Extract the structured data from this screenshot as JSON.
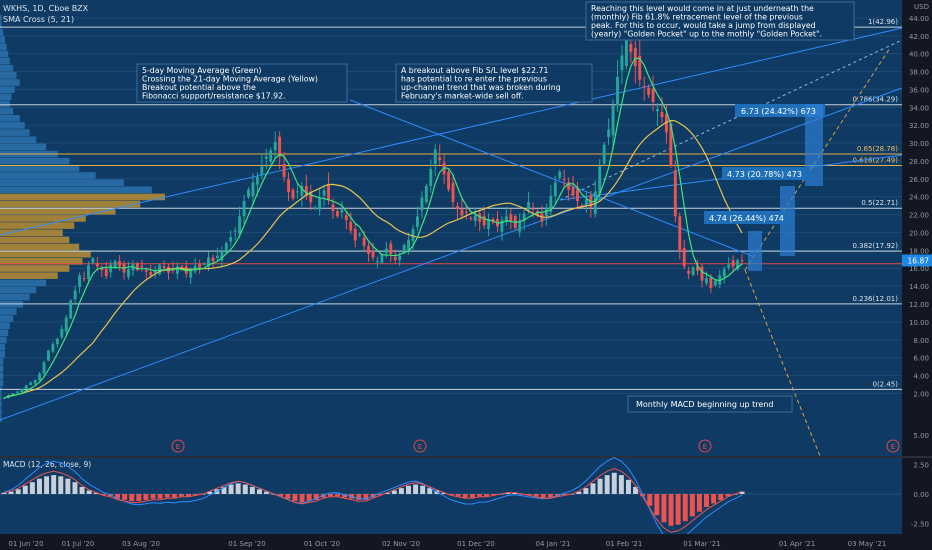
{
  "header": {
    "symbol": "WKHS, 1D, Cboe BZX",
    "indicator": "SMA Cross (5, 21)",
    "currency": "USD"
  },
  "chart_data": {
    "type": "candlestick",
    "ylim": [
      -5,
      46
    ],
    "price_ticks": [
      44,
      42,
      40,
      38,
      36,
      34,
      32,
      30,
      28,
      26,
      24,
      22,
      20,
      18,
      16,
      14,
      12,
      10,
      8,
      6,
      4,
      2
    ],
    "dates": [
      "01 Jun '20",
      "01 Jul '20",
      "03 Aug '20",
      "01 Sep '20",
      "01 Oct '20",
      "02 Nov '20",
      "01 Dec '20",
      "04 Jan '21",
      "01 Feb '21",
      "01 Mar '21",
      "01 Apr '21",
      "03 May '21"
    ],
    "last_price": "16.87",
    "fib_levels": [
      {
        "ratio": "1",
        "value": 42.96,
        "label": "1(42.96)"
      },
      {
        "ratio": "0.786",
        "value": 34.29,
        "label": "0.786(34.29)"
      },
      {
        "ratio": "0.65",
        "value": 28.78,
        "label": "0.65(28.78)"
      },
      {
        "ratio": "0.618",
        "value": 27.49,
        "label": "0.618(27.49)"
      },
      {
        "ratio": "0.5",
        "value": 22.71,
        "label": "0.5(22.71)"
      },
      {
        "ratio": "0.382",
        "value": 17.92,
        "label": "0.382(17.92)"
      },
      {
        "ratio": "0.236",
        "value": 12.01,
        "label": "0.236(12.01)"
      },
      {
        "ratio": "0",
        "value": 2.45,
        "label": "0(2.45)"
      }
    ],
    "support_level": 16.5,
    "closes": [
      1.5,
      1.8,
      2.0,
      2.2,
      2.5,
      2.9,
      3.2,
      3.5,
      4.2,
      5.5,
      6.8,
      7.5,
      8.1,
      9.2,
      10.5,
      12.4,
      13.5,
      15.2,
      14.8,
      16.3,
      17.1,
      16.2,
      15.8,
      15.1,
      16.4,
      16.8,
      16.2,
      15.5,
      15.9,
      16.4,
      15.8,
      16.1,
      15.6,
      15.2,
      15.8,
      16.4,
      16.0,
      15.5,
      15.7,
      16.2,
      15.9,
      15.4,
      15.8,
      16.3,
      16.0,
      16.5,
      17.2,
      16.8,
      17.4,
      17.9,
      18.8,
      19.5,
      20.2,
      21.8,
      23.5,
      24.8,
      25.6,
      26.2,
      27.4,
      28.5,
      29.2,
      30.1,
      28.5,
      26.2,
      24.5,
      23.8,
      24.6,
      25.2,
      24.1,
      23.4,
      22.8,
      23.9,
      24.7,
      23.6,
      22.4,
      21.8,
      22.6,
      21.4,
      20.2,
      19.1,
      19.8,
      18.5,
      17.6,
      17.2,
      16.8,
      17.5,
      18.2,
      17.6,
      16.9,
      17.4,
      18.6,
      19.2,
      20.4,
      21.8,
      23.9,
      25.2,
      27.1,
      29.3,
      28.1,
      26.5,
      24.8,
      23.4,
      22.6,
      21.9,
      22.3,
      21.5,
      21.9,
      21.2,
      20.8,
      21.5,
      21.1,
      20.7,
      21.4,
      21.8,
      21.2,
      20.5,
      21.3,
      22.1,
      23.4,
      22.6,
      21.9,
      21.2,
      22.8,
      24.1,
      25.6,
      26.8,
      25.9,
      24.8,
      24.2,
      23.5,
      22.9,
      23.7,
      22.8,
      24.6,
      27.4,
      29.8,
      31.5,
      34.2,
      37.4,
      39.8,
      41.5,
      40.2,
      38.6,
      37.1,
      36.2,
      35.4,
      34.6,
      33.8,
      32.9,
      31.2,
      27.5,
      21.8,
      17.9,
      16.2,
      15.4,
      16.1,
      15.7,
      14.6,
      14.9,
      13.8,
      14.6,
      15.2,
      15.9,
      16.4,
      16.2,
      16.9,
      16.87
    ],
    "volume_profile": [
      0,
      0,
      0,
      1,
      1,
      2,
      3,
      4,
      5,
      6,
      8,
      10,
      12,
      9,
      7,
      6,
      8,
      12,
      15,
      18,
      22,
      28,
      35,
      42,
      48,
      58,
      75,
      92,
      100,
      85,
      70,
      52,
      45,
      38,
      42,
      48,
      55,
      50,
      42,
      35,
      28,
      22,
      18,
      14,
      10,
      8,
      6,
      5,
      4,
      3,
      3,
      2,
      2,
      2,
      2,
      1,
      1,
      1,
      1,
      1
    ],
    "macd_ticks": [
      "5.00",
      "2.50",
      "0.00",
      "-2.50"
    ],
    "macd_hist": [
      0.1,
      0.2,
      0.4,
      0.7,
      1.0,
      1.3,
      1.5,
      1.6,
      1.5,
      1.3,
      1.0,
      0.6,
      0.3,
      0.1,
      -0.1,
      -0.2,
      -0.4,
      -0.5,
      -0.6,
      -0.6,
      -0.5,
      -0.4,
      -0.4,
      -0.3,
      -0.3,
      -0.2,
      -0.2,
      -0.1,
      0.0,
      0.2,
      0.4,
      0.6,
      0.8,
      0.9,
      0.8,
      0.6,
      0.4,
      0.2,
      0.0,
      -0.2,
      -0.4,
      -0.6,
      -0.7,
      -0.6,
      -0.5,
      -0.3,
      -0.2,
      -0.2,
      -0.3,
      -0.4,
      -0.5,
      -0.5,
      -0.3,
      -0.1,
      0.1,
      0.3,
      0.5,
      0.7,
      0.8,
      0.7,
      0.5,
      0.3,
      0.1,
      -0.1,
      -0.2,
      -0.3,
      -0.3,
      -0.2,
      -0.2,
      -0.1,
      0.0,
      0.1,
      0.1,
      0.0,
      -0.1,
      -0.2,
      -0.3,
      -0.3,
      -0.2,
      -0.1,
      0.0,
      0.2,
      0.5,
      0.9,
      1.3,
      1.6,
      1.8,
      1.6,
      1.2,
      0.6,
      -0.2,
      -1.0,
      -1.8,
      -2.4,
      -2.7,
      -2.6,
      -2.3,
      -1.9,
      -1.5,
      -1.1,
      -0.8,
      -0.5,
      -0.2,
      0.0,
      0.2
    ]
  },
  "annotations": {
    "note_ma": "5-day Moving Average (Green)\nCrossing the 21-day Moving Average (Yellow)\nBreakout potential above the\nFibonacci support/resistance $17.92.",
    "note_breakout": "A breakout above Fib S/L level $22.71\nhas potential to re enter the previous\nup-channel trend that was broken during\nFebruary's market-wide sell off.",
    "note_reach": "Reaching this level would come in at just underneath the\n(monthly) Fib 61.8% retracement level of the previous\npeak. For this to occur, would take a jump from displayed\n(yearly) \"Golden Pocket\" up to the mothly \"Golden Pocket\".",
    "note_macd": "Monthly MACD beginning up trend",
    "target_1": "6.73 (24.42%) 673",
    "target_2": "4.73 (20.78%) 473",
    "target_3": "4.74 (26.44%) 474",
    "macd_label": "MACD (12, 26, close, 9)",
    "earnings_marker": "E"
  }
}
